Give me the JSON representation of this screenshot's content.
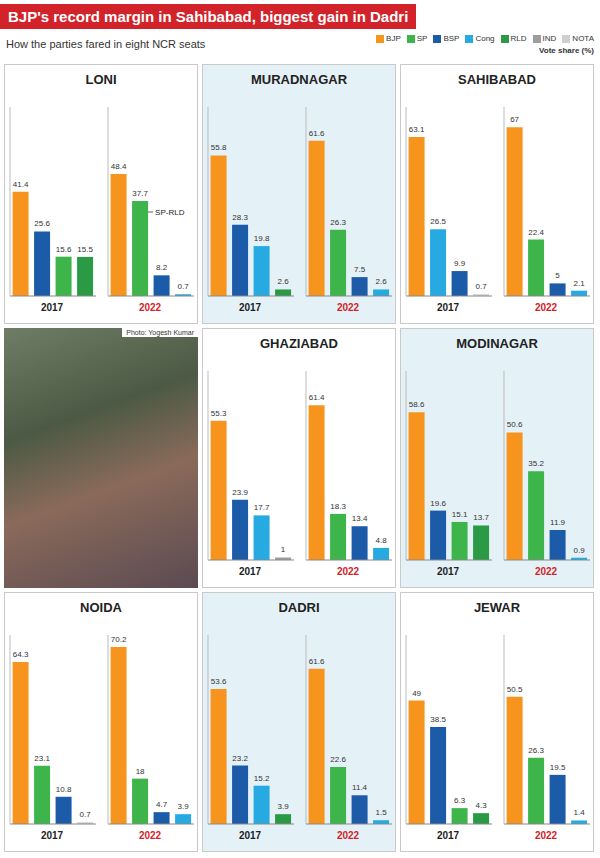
{
  "title": "BJP's record margin in Sahibabad, biggest gain in Dadri",
  "subtitle": "How the parties fared in eight NCR seats",
  "legend_title": "Vote share (%)",
  "legend_items": [
    {
      "name": "BJP",
      "color": "#f7941d"
    },
    {
      "name": "SP",
      "color": "#3db54a"
    },
    {
      "name": "BSP",
      "color": "#1c5ba8"
    },
    {
      "name": "Cong",
      "color": "#27aae1"
    },
    {
      "name": "RLD",
      "color": "#2b9a45"
    },
    {
      "name": "IND",
      "color": "#9d9d9d"
    },
    {
      "name": "NOTA",
      "color": "#cfcfcf"
    }
  ],
  "photo_credit": "Photo: Yogesh Kumar",
  "chart_data": [
    {
      "type": "bar",
      "title": "LONI",
      "ylim": [
        0,
        75
      ],
      "tick_labels": false,
      "data_labels": true,
      "groups": [
        {
          "label": "2017",
          "values": [
            41.4,
            25.6,
            15.6,
            15.5
          ],
          "colors": [
            "#f7941d",
            "#1c5ba8",
            "#3db54a",
            "#2b9a45"
          ]
        },
        {
          "label": "2022",
          "values": [
            48.4,
            37.7,
            8.2,
            0.7
          ],
          "colors": [
            "#f7941d",
            "#3db54a",
            "#1c5ba8",
            "#27aae1"
          ]
        }
      ],
      "annotations": [
        {
          "text": "SP-RLD",
          "group": 1,
          "bar": 1
        }
      ]
    },
    {
      "type": "bar",
      "title": "MURADNAGAR",
      "ylim": [
        0,
        75
      ],
      "tick_labels": false,
      "data_labels": true,
      "groups": [
        {
          "label": "2017",
          "values": [
            55.8,
            28.3,
            19.8,
            2.6
          ],
          "colors": [
            "#f7941d",
            "#1c5ba8",
            "#27aae1",
            "#2b9a45"
          ]
        },
        {
          "label": "2022",
          "values": [
            61.6,
            26.3,
            7.5,
            2.6
          ],
          "colors": [
            "#f7941d",
            "#3db54a",
            "#1c5ba8",
            "#27aae1"
          ]
        }
      ]
    },
    {
      "type": "bar",
      "title": "SAHIBABAD",
      "ylim": [
        0,
        75
      ],
      "tick_labels": false,
      "data_labels": true,
      "groups": [
        {
          "label": "2017",
          "values": [
            63.1,
            26.5,
            9.9,
            0.7
          ],
          "colors": [
            "#f7941d",
            "#27aae1",
            "#1c5ba8",
            "#cfcfcf"
          ]
        },
        {
          "label": "2022",
          "values": [
            67,
            22.4,
            5,
            2.1
          ],
          "colors": [
            "#f7941d",
            "#3db54a",
            "#1c5ba8",
            "#27aae1"
          ]
        }
      ]
    },
    {
      "type": "bar",
      "title": "GHAZIABAD",
      "ylim": [
        0,
        75
      ],
      "tick_labels": false,
      "data_labels": true,
      "groups": [
        {
          "label": "2017",
          "values": [
            55.3,
            23.9,
            17.7,
            1
          ],
          "colors": [
            "#f7941d",
            "#1c5ba8",
            "#27aae1",
            "#9d9d9d"
          ]
        },
        {
          "label": "2022",
          "values": [
            61.4,
            18.3,
            13.4,
            4.8
          ],
          "colors": [
            "#f7941d",
            "#3db54a",
            "#1c5ba8",
            "#27aae1"
          ]
        }
      ]
    },
    {
      "type": "bar",
      "title": "MODINAGAR",
      "ylim": [
        0,
        75
      ],
      "tick_labels": false,
      "data_labels": true,
      "groups": [
        {
          "label": "2017",
          "values": [
            58.6,
            19.6,
            15.1,
            13.7
          ],
          "colors": [
            "#f7941d",
            "#1c5ba8",
            "#3db54a",
            "#2b9a45"
          ]
        },
        {
          "label": "2022",
          "values": [
            50.6,
            35.2,
            11.9,
            0.9
          ],
          "colors": [
            "#f7941d",
            "#3db54a",
            "#1c5ba8",
            "#27aae1"
          ]
        }
      ]
    },
    {
      "type": "bar",
      "title": "NOIDA",
      "ylim": [
        0,
        75
      ],
      "tick_labels": false,
      "data_labels": true,
      "groups": [
        {
          "label": "2017",
          "values": [
            64.3,
            23.1,
            10.8,
            0.7
          ],
          "colors": [
            "#f7941d",
            "#3db54a",
            "#1c5ba8",
            "#cfcfcf"
          ]
        },
        {
          "label": "2022",
          "values": [
            70.2,
            18,
            4.7,
            3.9
          ],
          "colors": [
            "#f7941d",
            "#3db54a",
            "#1c5ba8",
            "#27aae1"
          ]
        }
      ]
    },
    {
      "type": "bar",
      "title": "DADRI",
      "ylim": [
        0,
        75
      ],
      "tick_labels": false,
      "data_labels": true,
      "groups": [
        {
          "label": "2017",
          "values": [
            53.6,
            23.2,
            15.2,
            3.9
          ],
          "colors": [
            "#f7941d",
            "#1c5ba8",
            "#27aae1",
            "#2b9a45"
          ]
        },
        {
          "label": "2022",
          "values": [
            61.6,
            22.6,
            11.4,
            1.5
          ],
          "colors": [
            "#f7941d",
            "#3db54a",
            "#1c5ba8",
            "#27aae1"
          ]
        }
      ]
    },
    {
      "type": "bar",
      "title": "JEWAR",
      "ylim": [
        0,
        75
      ],
      "tick_labels": false,
      "data_labels": true,
      "groups": [
        {
          "label": "2017",
          "values": [
            49,
            38.5,
            6.3,
            4.3
          ],
          "colors": [
            "#f7941d",
            "#1c5ba8",
            "#3db54a",
            "#2b9a45"
          ]
        },
        {
          "label": "2022",
          "values": [
            50.5,
            26.3,
            19.5,
            1.4
          ],
          "colors": [
            "#f7941d",
            "#3db54a",
            "#1c5ba8",
            "#27aae1"
          ]
        }
      ]
    }
  ]
}
